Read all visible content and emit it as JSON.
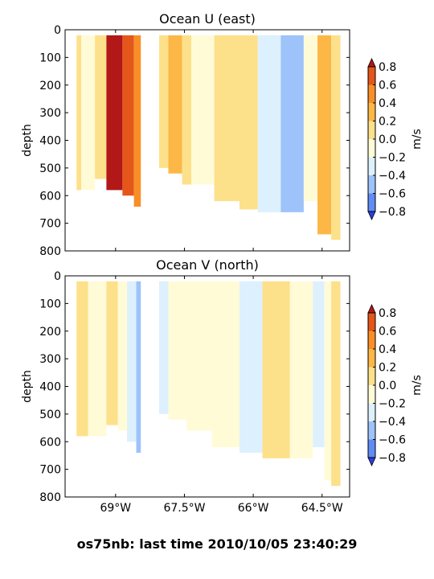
{
  "figure": {
    "suptitle": "os75nb: last time 2010/10/05 23:40:29"
  },
  "colors": {
    "levels": [
      -0.8,
      -0.6,
      -0.4,
      -0.2,
      0.0,
      0.2,
      0.4,
      0.6,
      0.8
    ],
    "bins": [
      "#3f5ff0",
      "#5f8cf5",
      "#9dc3fa",
      "#ddf0fd",
      "#fffbd7",
      "#fde08a",
      "#fdb746",
      "#f98e27",
      "#e4561a",
      "#cb2c1b"
    ],
    "under": "#2c3ee0",
    "over": "#b21818"
  },
  "chart_data": [
    {
      "type": "heatmap",
      "title": "Ocean U (east)",
      "xlabel": "",
      "ylabel": "depth",
      "xlim": [
        -70.1,
        -63.9
      ],
      "ylim": [
        800,
        0
      ],
      "yticks": [
        0,
        100,
        200,
        300,
        400,
        500,
        600,
        700,
        800
      ],
      "xticks": [
        -69,
        -67.5,
        -66,
        -64.5
      ],
      "xtick_labels": [],
      "colorbar": {
        "label": "m/s",
        "ticks": [
          -0.8,
          -0.6,
          -0.4,
          -0.2,
          0.0,
          0.2,
          0.4,
          0.6,
          0.8
        ],
        "tick_labels": [
          "−0.8",
          "−0.6",
          "−0.4",
          "−0.2",
          "0.0",
          "0.2",
          "0.4",
          "0.6",
          "0.8"
        ]
      },
      "bands": [
        {
          "x": [
            -69.85,
            -69.75
          ],
          "depth": [
            20,
            580
          ],
          "value": 0.1
        },
        {
          "x": [
            -69.75,
            -69.45
          ],
          "depth": [
            20,
            580
          ],
          "value": -0.1
        },
        {
          "x": [
            -69.45,
            -69.2
          ],
          "depth": [
            20,
            540
          ],
          "value": 0.1
        },
        {
          "x": [
            -69.2,
            -68.85
          ],
          "depth": [
            20,
            580
          ],
          "value": 0.9
        },
        {
          "x": [
            -68.85,
            -68.6
          ],
          "depth": [
            20,
            600
          ],
          "value": 0.7
        },
        {
          "x": [
            -68.6,
            -68.45
          ],
          "depth": [
            20,
            640
          ],
          "value": 0.5
        },
        {
          "x": [
            -68.05,
            -67.85
          ],
          "depth": [
            20,
            500
          ],
          "value": 0.1
        },
        {
          "x": [
            -67.85,
            -67.55
          ],
          "depth": [
            20,
            520
          ],
          "value": 0.3
        },
        {
          "x": [
            -67.55,
            -67.35
          ],
          "depth": [
            20,
            560
          ],
          "value": 0.1
        },
        {
          "x": [
            -67.35,
            -66.85
          ],
          "depth": [
            20,
            560
          ],
          "value": -0.1
        },
        {
          "x": [
            -66.85,
            -66.3
          ],
          "depth": [
            20,
            620
          ],
          "value": 0.1
        },
        {
          "x": [
            -66.3,
            -65.9
          ],
          "depth": [
            20,
            650
          ],
          "value": 0.1
        },
        {
          "x": [
            -65.9,
            -65.4
          ],
          "depth": [
            20,
            660
          ],
          "value": -0.3
        },
        {
          "x": [
            -65.4,
            -64.9
          ],
          "depth": [
            20,
            660
          ],
          "value": -0.5
        },
        {
          "x": [
            -64.9,
            -64.6
          ],
          "depth": [
            20,
            620
          ],
          "value": -0.1
        },
        {
          "x": [
            -64.6,
            -64.3
          ],
          "depth": [
            20,
            740
          ],
          "value": 0.3
        },
        {
          "x": [
            -64.3,
            -64.1
          ],
          "depth": [
            20,
            760
          ],
          "value": 0.1
        }
      ]
    },
    {
      "type": "heatmap",
      "title": "Ocean V (north)",
      "xlabel": "",
      "ylabel": "depth",
      "xlim": [
        -70.1,
        -63.9
      ],
      "ylim": [
        800,
        0
      ],
      "yticks": [
        0,
        100,
        200,
        300,
        400,
        500,
        600,
        700,
        800
      ],
      "xticks": [
        -69,
        -67.5,
        -66,
        -64.5
      ],
      "xtick_labels": [
        "69°W",
        "67.5°W",
        "66°W",
        "64.5°W"
      ],
      "colorbar": {
        "label": "m/s",
        "ticks": [
          -0.8,
          -0.6,
          -0.4,
          -0.2,
          0.0,
          0.2,
          0.4,
          0.6,
          0.8
        ],
        "tick_labels": [
          "−0.8",
          "−0.6",
          "−0.4",
          "−0.2",
          "0.0",
          "0.2",
          "0.4",
          "0.6",
          "0.8"
        ]
      },
      "bands": [
        {
          "x": [
            -69.85,
            -69.6
          ],
          "depth": [
            20,
            580
          ],
          "value": 0.1
        },
        {
          "x": [
            -69.6,
            -69.2
          ],
          "depth": [
            20,
            580
          ],
          "value": -0.1
        },
        {
          "x": [
            -69.2,
            -68.95
          ],
          "depth": [
            20,
            540
          ],
          "value": 0.1
        },
        {
          "x": [
            -68.95,
            -68.75
          ],
          "depth": [
            20,
            560
          ],
          "value": -0.1
        },
        {
          "x": [
            -68.75,
            -68.55
          ],
          "depth": [
            20,
            600
          ],
          "value": -0.3
        },
        {
          "x": [
            -68.55,
            -68.45
          ],
          "depth": [
            20,
            640
          ],
          "value": -0.5
        },
        {
          "x": [
            -68.05,
            -67.85
          ],
          "depth": [
            20,
            500
          ],
          "value": -0.3
        },
        {
          "x": [
            -67.85,
            -67.45
          ],
          "depth": [
            20,
            520
          ],
          "value": -0.1
        },
        {
          "x": [
            -67.45,
            -66.9
          ],
          "depth": [
            20,
            560
          ],
          "value": -0.1
        },
        {
          "x": [
            -66.9,
            -66.3
          ],
          "depth": [
            20,
            620
          ],
          "value": -0.1
        },
        {
          "x": [
            -66.3,
            -65.8
          ],
          "depth": [
            20,
            640
          ],
          "value": -0.3
        },
        {
          "x": [
            -65.8,
            -65.2
          ],
          "depth": [
            20,
            660
          ],
          "value": 0.1
        },
        {
          "x": [
            -65.2,
            -64.7
          ],
          "depth": [
            20,
            660
          ],
          "value": -0.1
        },
        {
          "x": [
            -64.7,
            -64.45
          ],
          "depth": [
            20,
            620
          ],
          "value": -0.3
        },
        {
          "x": [
            -64.45,
            -64.3
          ],
          "depth": [
            20,
            740
          ],
          "value": -0.1
        },
        {
          "x": [
            -64.3,
            -64.1
          ],
          "depth": [
            20,
            760
          ],
          "value": 0.1
        }
      ]
    }
  ]
}
